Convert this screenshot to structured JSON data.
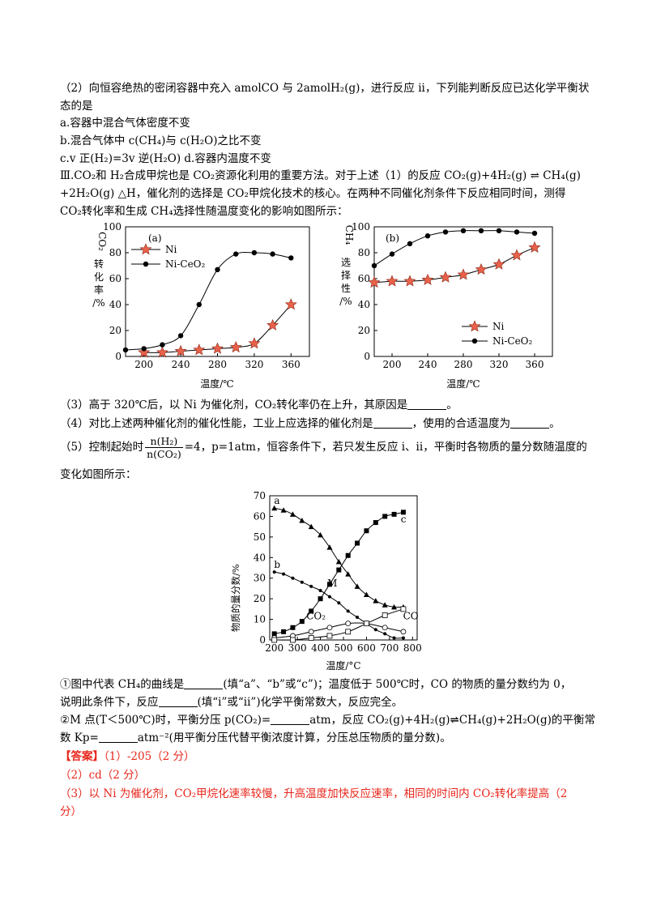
{
  "text": {
    "l1": "（2）向恒容绝热的密闭容器中充入 amolCO 与 2amolH₂(g)，进行反应 ii，下列能判断反应已达化学平衡状",
    "l2": "态的是",
    "l3": "a.容器中混合气体密度不变",
    "l4": "b.混合气体中 c(CH₄)与 c(H₂O)之比不变",
    "l5": "c.v 正(H₂)=3v 逆(H₂O) d.容器内温度不变",
    "l6": "Ⅲ.CO₂和 H₂合成甲烷也是 CO₂资源化利用的重要方法。对于上述（1）的反应 CO₂(g)+4H₂(g) ⇌ CH₄(g)",
    "l7": "+2H₂O(g) △H，催化剂的选择是 CO₂甲烷化技术的核心。在两种不同催化剂条件下反应相同时间，测得",
    "l8": "CO₂转化率和生成 CH₄选择性随温度变化的影响如图所示：",
    "q3a": "（3）高于 320℃后，以 Ni 为催化剂，CO₂转化率仍在上升，其原因是",
    "q3b": "。",
    "q4a": "（4）对比上述两种催化剂的催化性能，工业上应选择的催化剂是",
    "q4b": "，使用的合适温度为",
    "q4c": "。",
    "q5a": "（5）控制起始时",
    "q5num": "n(H₂)",
    "q5den": "n(CO₂)",
    "q5b": "=4，p=1atm，恒容条件下，若只发生反应 i、ii，平衡时各物质的量分数随温度的",
    "q5c": "变化如图所示：",
    "s1a": "①图中代表 CH₄的曲线是",
    "s1b": "(填“a”、“b”或“c”)；温度低于 500℃时，CO 的物质的量分数约为 0，",
    "s1c": "说明此条件下，反应",
    "s1d": "(填“i”或“ii”)化学平衡常数大，反应完全。",
    "s2a": "②M 点(T＜500℃)时，平衡分压 p(CO₂)=",
    "s2b": "atm，反应 CO₂(g)+4H₂(g)",
    "s2c": "CH₄(g)+2H₂O(g)的平衡常",
    "s2d": "数 Kp=",
    "s2e": "atm⁻²(用平衡分压代替平衡浓度计算，分压总压物质的量分数)。",
    "ans_tag": "【答案】",
    "ans1": "（1）-205（2 分）",
    "ans2": "（2）cd（2 分）",
    "ans3a": "（3）以 Ni 为催化剂，CO₂甲烷化速率较慢，升高温度加快反应速率，相同的时间内 CO₂转化率提高（2",
    "ans3b": "分）"
  },
  "chart_data": [
    {
      "type": "line",
      "panel_label": "(a)",
      "xlabel": "温度/℃",
      "ylabel": "CO₂转化率/%",
      "xlim": [
        180,
        380
      ],
      "ylim": [
        0,
        100
      ],
      "xticks": [
        200,
        240,
        280,
        320,
        360
      ],
      "yticks": [
        0,
        20,
        40,
        60,
        80,
        100
      ],
      "legend": "top-left",
      "series": [
        {
          "name": "Ni",
          "marker": "star",
          "color": "#e8614a",
          "x": [
            200,
            220,
            240,
            260,
            280,
            300,
            320,
            340,
            360
          ],
          "y": [
            3,
            3,
            4,
            5,
            6,
            7,
            10,
            24,
            40
          ]
        },
        {
          "name": "Ni-CeO₂",
          "marker": "circle",
          "color": "#000000",
          "x": [
            180,
            200,
            220,
            240,
            260,
            280,
            300,
            320,
            340,
            360
          ],
          "y": [
            5,
            6,
            9,
            16,
            40,
            67,
            79,
            80,
            79,
            76
          ]
        }
      ]
    },
    {
      "type": "line",
      "panel_label": "(b)",
      "xlabel": "温度/℃",
      "ylabel": "CH₄选择性/%",
      "xlim": [
        180,
        380
      ],
      "ylim": [
        0,
        100
      ],
      "xticks": [
        200,
        240,
        280,
        320,
        360
      ],
      "yticks": [
        0,
        20,
        40,
        60,
        80,
        100
      ],
      "legend": "bottom-center",
      "series": [
        {
          "name": "Ni",
          "marker": "star",
          "color": "#e8614a",
          "x": [
            180,
            200,
            220,
            240,
            260,
            280,
            300,
            320,
            340,
            360
          ],
          "y": [
            57,
            58,
            58,
            59,
            61,
            63,
            67,
            71,
            78,
            84
          ]
        },
        {
          "name": "Ni-CeO₂",
          "marker": "circle",
          "color": "#000000",
          "x": [
            180,
            200,
            220,
            240,
            260,
            280,
            300,
            320,
            340,
            360
          ],
          "y": [
            70,
            79,
            87,
            93,
            96,
            97,
            97,
            97,
            96,
            95
          ]
        }
      ]
    },
    {
      "type": "line",
      "xlabel": "温度/°C",
      "ylabel": "物质的量分数/%",
      "xlim": [
        180,
        820
      ],
      "ylim": [
        0,
        70
      ],
      "xticks": [
        200,
        300,
        400,
        500,
        600,
        700,
        800
      ],
      "yticks": [
        0,
        10,
        20,
        30,
        40,
        50,
        60,
        70
      ],
      "annotations": [
        "a",
        "b",
        "c",
        "M",
        "CO₂",
        "CO"
      ],
      "series": [
        {
          "name": "a",
          "marker": "triangle",
          "x": [
            200,
            240,
            280,
            320,
            360,
            400,
            440,
            480,
            520,
            560,
            600,
            640,
            680,
            720,
            760
          ],
          "y": [
            64,
            63,
            61,
            58,
            55,
            51,
            45,
            38,
            32,
            26,
            22,
            19,
            17,
            16,
            16
          ]
        },
        {
          "name": "b",
          "marker": "dot",
          "x": [
            200,
            240,
            280,
            320,
            360,
            400,
            440,
            480,
            520,
            560,
            600,
            640,
            680,
            720,
            760
          ],
          "y": [
            33,
            32,
            30,
            28,
            26,
            24,
            21,
            18,
            14,
            11,
            8,
            5,
            3,
            1,
            1
          ]
        },
        {
          "name": "c",
          "marker": "square",
          "x": [
            200,
            240,
            280,
            320,
            360,
            400,
            440,
            480,
            520,
            560,
            600,
            640,
            680,
            720,
            760
          ],
          "y": [
            3,
            4,
            6,
            9,
            14,
            20,
            27,
            34,
            41,
            47,
            53,
            57,
            60,
            61,
            62
          ]
        },
        {
          "name": "CO₂",
          "marker": "open-circle",
          "x": [
            200,
            280,
            360,
            440,
            520,
            600,
            680,
            760
          ],
          "y": [
            1,
            2,
            4,
            6,
            8,
            8,
            6,
            4
          ]
        },
        {
          "name": "CO",
          "marker": "open-square",
          "x": [
            200,
            280,
            360,
            440,
            520,
            600,
            680,
            760
          ],
          "y": [
            0,
            0,
            1,
            2,
            4,
            8,
            12,
            15
          ]
        }
      ]
    }
  ]
}
